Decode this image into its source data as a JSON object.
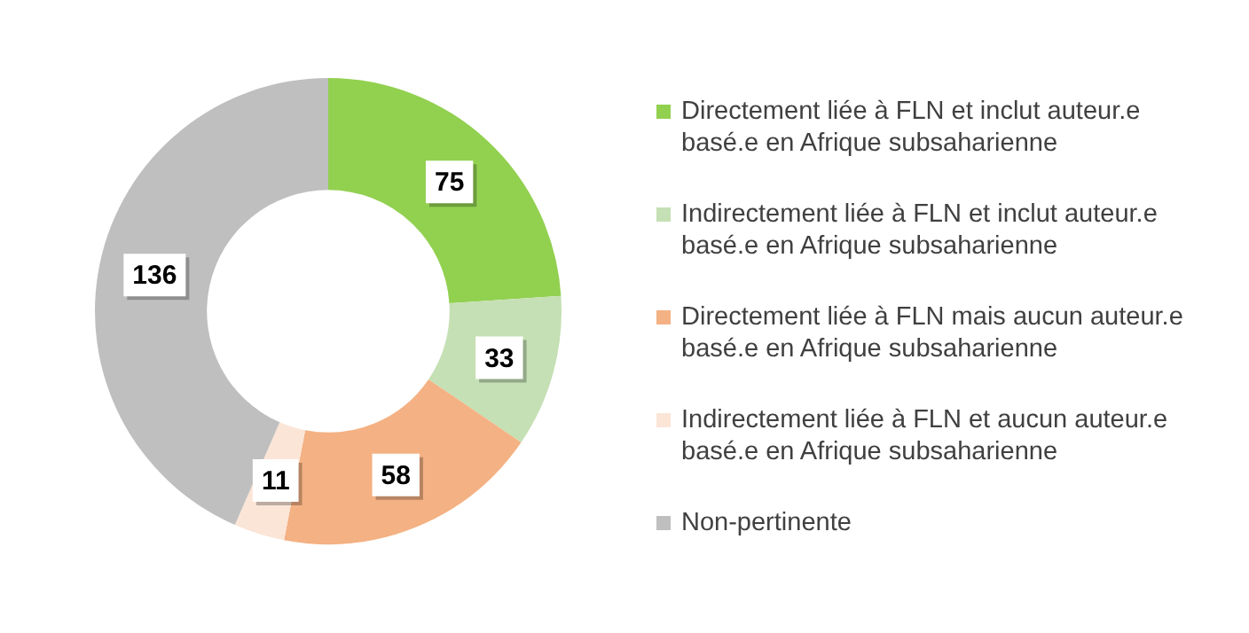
{
  "chart_data": {
    "type": "donut",
    "categories": [
      "Directement liée à FLN et inclut auteur.e basé.e en Afrique subsaharienne",
      "Indirectement liée à FLN et inclut auteur.e basé.e en Afrique subsaharienne",
      "Directement liée à FLN mais aucun auteur.e basé.e en Afrique subsaharienne",
      "Indirectement liée à FLN et aucun auteur.e basé.e en Afrique subsaharienne",
      "Non-pertinente"
    ],
    "values": [
      75,
      33,
      58,
      11,
      136
    ],
    "colors": [
      "#92d050",
      "#c5e0b4",
      "#f4b183",
      "#fbe5d6",
      "#bfbfbf"
    ],
    "data_labels": true,
    "legend": "right"
  }
}
